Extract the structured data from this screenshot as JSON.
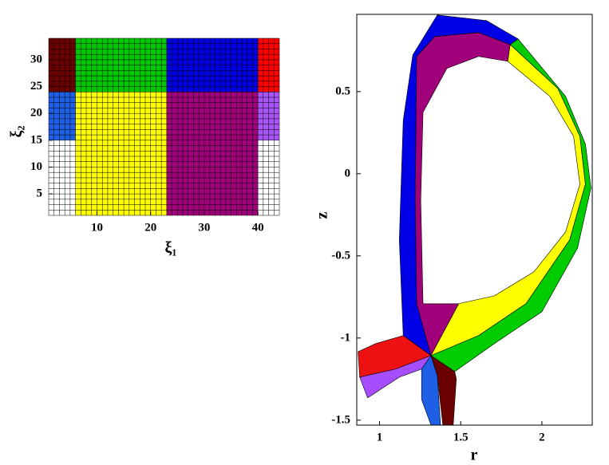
{
  "chart_data": [
    {
      "type": "block",
      "xlabel": "ξ₁",
      "ylabel": "ξ₂",
      "xlim": [
        1,
        44
      ],
      "ylim": [
        1,
        34
      ],
      "xticks": [
        10,
        20,
        30,
        40
      ],
      "yticks": [
        5,
        10,
        15,
        20,
        25,
        30
      ],
      "regions": [
        {
          "x": [
            1,
            6
          ],
          "y": [
            24,
            34
          ],
          "color": "#6b0000"
        },
        {
          "x": [
            6,
            23
          ],
          "y": [
            24,
            34
          ],
          "color": "#00c800"
        },
        {
          "x": [
            23,
            40
          ],
          "y": [
            24,
            34
          ],
          "color": "#0000e0"
        },
        {
          "x": [
            40,
            44
          ],
          "y": [
            24,
            34
          ],
          "color": "#ff0000"
        },
        {
          "x": [
            1,
            6
          ],
          "y": [
            15,
            24
          ],
          "color": "#1e5fe6"
        },
        {
          "x": [
            6,
            23
          ],
          "y": [
            1,
            24
          ],
          "color": "#ffff00"
        },
        {
          "x": [
            23,
            40
          ],
          "y": [
            1,
            24
          ],
          "color": "#a0007a"
        },
        {
          "x": [
            40,
            44
          ],
          "y": [
            15,
            24
          ],
          "color": "#a855f7"
        },
        {
          "x": [
            1,
            6
          ],
          "y": [
            1,
            15
          ],
          "color": "#ffffff"
        },
        {
          "x": [
            40,
            44
          ],
          "y": [
            1,
            15
          ],
          "color": "#ffffff"
        }
      ]
    },
    {
      "type": "polygon",
      "xlabel": "r",
      "ylabel": "z",
      "xlim": [
        0.86,
        2.31
      ],
      "ylim": [
        -1.53,
        0.97
      ],
      "xticks": [
        1,
        1.5,
        2
      ],
      "yticks": [
        -1.5,
        -1,
        -0.5,
        0,
        0.5
      ],
      "regions": [
        {
          "color": "#0000e6",
          "r": [
            1.146,
            1.122,
            1.146,
            1.205,
            1.356,
            1.659,
            1.854,
            1.805,
            1.61,
            1.341,
            1.229,
            1.22,
            1.229,
            1.317
          ],
          "z": [
            -0.985,
            -0.403,
            0.325,
            0.723,
            0.966,
            0.932,
            0.82,
            0.786,
            0.859,
            0.835,
            0.714,
            -0.16,
            -0.791,
            -1.107
          ]
        },
        {
          "color": "#a0007a",
          "r": [
            1.317,
            1.229,
            1.22,
            1.229,
            1.341,
            1.61,
            1.805,
            1.79,
            1.61,
            1.415,
            1.268,
            1.254,
            1.268,
            1.488
          ],
          "z": [
            -1.107,
            -0.791,
            -0.16,
            0.714,
            0.835,
            0.859,
            0.786,
            0.684,
            0.714,
            0.641,
            0.374,
            -0.16,
            -0.791,
            -0.791
          ]
        },
        {
          "color": "#ffff00",
          "r": [
            1.805,
            2.098,
            2.234,
            2.268,
            2.171,
            1.902,
            1.61,
            1.317,
            1.488,
            1.707,
            1.951,
            2.146,
            2.234,
            2.195,
            2.049,
            1.79
          ],
          "z": [
            0.786,
            0.519,
            0.228,
            -0.063,
            -0.403,
            -0.791,
            -0.985,
            -1.107,
            -0.791,
            -0.743,
            -0.597,
            -0.354,
            -0.063,
            0.228,
            0.471,
            0.684
          ]
        },
        {
          "color": "#00cc00",
          "r": [
            1.854,
            2.146,
            2.268,
            2.302,
            2.22,
            2.0,
            1.707,
            1.463,
            1.317,
            1.61,
            1.902,
            2.171,
            2.268,
            2.234,
            2.098,
            1.805
          ],
          "z": [
            0.82,
            0.471,
            0.18,
            -0.087,
            -0.451,
            -0.84,
            -1.034,
            -1.204,
            -1.107,
            -0.985,
            -0.791,
            -0.403,
            -0.063,
            0.228,
            0.519,
            0.786
          ]
        },
        {
          "color": "#ee1111",
          "r": [
            1.317,
            1.146,
            0.976,
            0.868,
            0.878,
            1.098
          ],
          "z": [
            -1.107,
            -0.985,
            -1.034,
            -1.083,
            -1.238,
            -1.189
          ]
        },
        {
          "color": "#a64dff",
          "r": [
            1.317,
            1.098,
            0.878,
            0.927,
            1.122,
            1.259
          ],
          "z": [
            -1.107,
            -1.189,
            -1.238,
            -1.364,
            -1.238,
            -1.189
          ]
        },
        {
          "color": "#1e5fe6",
          "r": [
            1.317,
            1.259,
            1.259,
            1.317,
            1.376,
            1.356
          ],
          "z": [
            -1.107,
            -1.189,
            -1.374,
            -1.53,
            -1.53,
            -1.228
          ]
        },
        {
          "color": "#6b0000",
          "r": [
            1.317,
            1.356,
            1.39,
            1.454,
            1.473,
            1.463
          ],
          "z": [
            -1.107,
            -1.228,
            -1.53,
            -1.53,
            -1.25,
            -1.204
          ]
        }
      ]
    }
  ]
}
